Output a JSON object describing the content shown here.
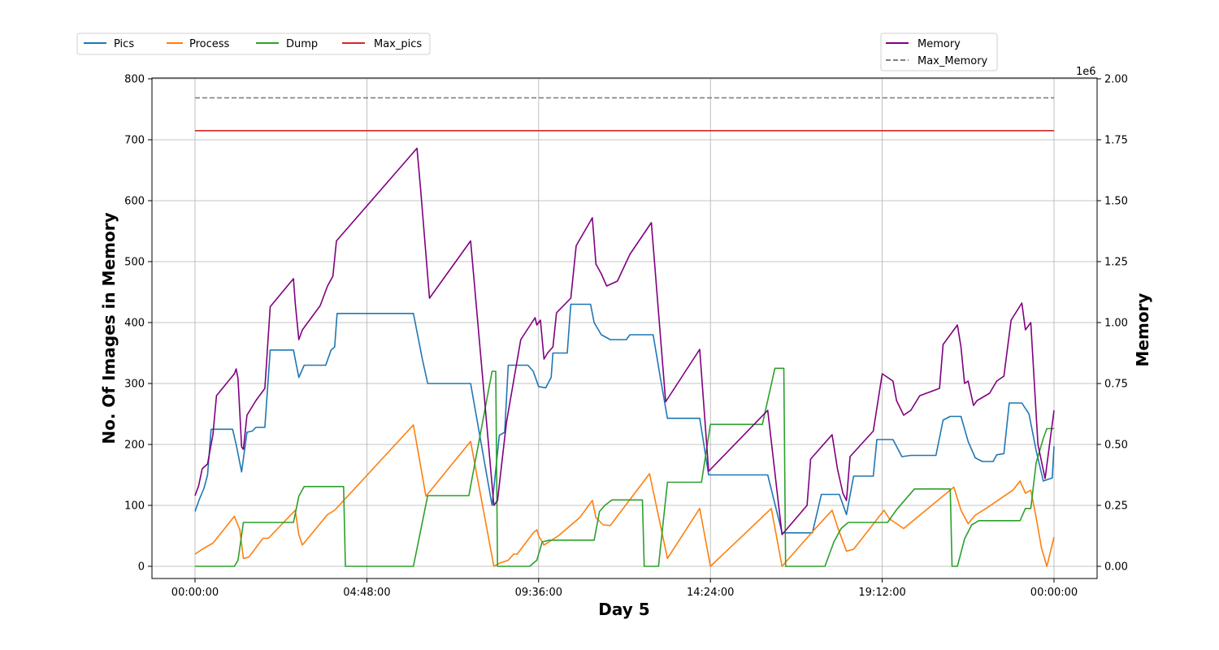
{
  "chart_data": {
    "type": "line",
    "xlabel": "Day 5",
    "ylabel_left": "No. Of Images in Memory",
    "ylabel_right": "Memory",
    "right_axis_multiplier": "1e6",
    "x_unit": "hours",
    "x_range": [
      0,
      24
    ],
    "x_ticks": [
      {
        "value": 0,
        "label": "00:00:00"
      },
      {
        "value": 4.8,
        "label": "04:48:00"
      },
      {
        "value": 9.6,
        "label": "09:36:00"
      },
      {
        "value": 14.4,
        "label": "14:24:00"
      },
      {
        "value": 19.2,
        "label": "19:12:00"
      },
      {
        "value": 24,
        "label": "00:00:00"
      }
    ],
    "ylim_left": [
      -20,
      800
    ],
    "yticks_left": [
      0,
      100,
      200,
      300,
      400,
      500,
      600,
      700,
      800
    ],
    "ylim_right": [
      -50000,
      2000000
    ],
    "yticks_right": [
      {
        "value": 0,
        "label": "0.00"
      },
      {
        "value": 250000,
        "label": "0.25"
      },
      {
        "value": 500000,
        "label": "0.50"
      },
      {
        "value": 750000,
        "label": "0.75"
      },
      {
        "value": 1000000,
        "label": "1.00"
      },
      {
        "value": 1250000,
        "label": "1.25"
      },
      {
        "value": 1500000,
        "label": "1.50"
      },
      {
        "value": 1750000,
        "label": "1.75"
      },
      {
        "value": 2000000,
        "label": "2.00"
      }
    ],
    "grid": true,
    "legend_left": {
      "placement": "top-left (above plot)",
      "entries": [
        "Pics",
        "Process",
        "Dump",
        "Max_pics"
      ]
    },
    "legend_right": {
      "placement": "top-right (above plot)",
      "entries": [
        "Memory",
        "Max_Memory"
      ]
    },
    "series": [
      {
        "name": "Pics",
        "axis": "left",
        "color": "#1f77b4",
        "style": "solid",
        "points": [
          [
            0,
            90
          ],
          [
            0.12,
            110
          ],
          [
            0.25,
            128
          ],
          [
            0.35,
            150
          ],
          [
            0.45,
            225
          ],
          [
            1.05,
            225
          ],
          [
            1.15,
            200
          ],
          [
            1.3,
            155
          ],
          [
            1.45,
            220
          ],
          [
            1.6,
            222
          ],
          [
            1.7,
            228
          ],
          [
            1.95,
            228
          ],
          [
            2.1,
            355
          ],
          [
            2.75,
            355
          ],
          [
            2.9,
            310
          ],
          [
            3.05,
            330
          ],
          [
            3.65,
            330
          ],
          [
            3.8,
            355
          ],
          [
            3.9,
            360
          ],
          [
            3.97,
            415
          ],
          [
            6.1,
            415
          ],
          [
            6.35,
            340
          ],
          [
            6.5,
            300
          ],
          [
            7.7,
            300
          ],
          [
            8.3,
            100
          ],
          [
            8.5,
            215
          ],
          [
            8.65,
            220
          ],
          [
            8.75,
            330
          ],
          [
            9.3,
            330
          ],
          [
            9.45,
            320
          ],
          [
            9.6,
            295
          ],
          [
            9.8,
            293
          ],
          [
            9.95,
            310
          ],
          [
            10,
            350
          ],
          [
            10.4,
            350
          ],
          [
            10.5,
            430
          ],
          [
            11.05,
            430
          ],
          [
            11.15,
            400
          ],
          [
            11.35,
            380
          ],
          [
            11.6,
            372
          ],
          [
            12.05,
            372
          ],
          [
            12.15,
            380
          ],
          [
            12.8,
            380
          ],
          [
            13.0,
            310
          ],
          [
            13.2,
            243
          ],
          [
            14.1,
            243
          ],
          [
            14.35,
            150
          ],
          [
            16.0,
            150
          ],
          [
            16.4,
            55
          ],
          [
            17.25,
            55
          ],
          [
            17.5,
            118
          ],
          [
            18.0,
            118
          ],
          [
            18.2,
            85
          ],
          [
            18.4,
            148
          ],
          [
            18.95,
            148
          ],
          [
            19.05,
            208
          ],
          [
            19.5,
            208
          ],
          [
            19.75,
            180
          ],
          [
            20.0,
            182
          ],
          [
            20.7,
            182
          ],
          [
            20.9,
            240
          ],
          [
            21.1,
            246
          ],
          [
            21.4,
            246
          ],
          [
            21.6,
            205
          ],
          [
            21.8,
            178
          ],
          [
            22.0,
            172
          ],
          [
            22.3,
            172
          ],
          [
            22.4,
            183
          ],
          [
            22.6,
            185
          ],
          [
            22.75,
            268
          ],
          [
            23.1,
            268
          ],
          [
            23.3,
            250
          ],
          [
            23.5,
            190
          ],
          [
            23.7,
            140
          ],
          [
            23.95,
            145
          ],
          [
            24,
            197
          ]
        ]
      },
      {
        "name": "Process",
        "axis": "left",
        "color": "#ff7f0e",
        "style": "solid",
        "points": [
          [
            0,
            20
          ],
          [
            0.2,
            28
          ],
          [
            0.5,
            38
          ],
          [
            1.1,
            82
          ],
          [
            1.25,
            60
          ],
          [
            1.35,
            13
          ],
          [
            1.5,
            15
          ],
          [
            1.9,
            46
          ],
          [
            2.05,
            46
          ],
          [
            2.8,
            92
          ],
          [
            2.9,
            52
          ],
          [
            3.0,
            35
          ],
          [
            3.7,
            85
          ],
          [
            3.9,
            92
          ],
          [
            6.1,
            232
          ],
          [
            6.45,
            115
          ],
          [
            7.7,
            205
          ],
          [
            8.35,
            0
          ],
          [
            8.5,
            5
          ],
          [
            8.75,
            10
          ],
          [
            8.9,
            20
          ],
          [
            9.0,
            20
          ],
          [
            9.45,
            55
          ],
          [
            9.55,
            60
          ],
          [
            9.6,
            50
          ],
          [
            9.75,
            35
          ],
          [
            10.15,
            50
          ],
          [
            10.75,
            80
          ],
          [
            11.1,
            108
          ],
          [
            11.2,
            80
          ],
          [
            11.4,
            68
          ],
          [
            11.6,
            67
          ],
          [
            12.7,
            152
          ],
          [
            13.2,
            13
          ],
          [
            14.1,
            95
          ],
          [
            14.4,
            0
          ],
          [
            16.1,
            95
          ],
          [
            16.4,
            0
          ],
          [
            17.3,
            60
          ],
          [
            17.8,
            92
          ],
          [
            17.95,
            65
          ],
          [
            18.2,
            25
          ],
          [
            18.4,
            28
          ],
          [
            19.25,
            92
          ],
          [
            19.4,
            78
          ],
          [
            19.6,
            70
          ],
          [
            19.8,
            62
          ],
          [
            21.2,
            130
          ],
          [
            21.4,
            92
          ],
          [
            21.6,
            70
          ],
          [
            21.8,
            84
          ],
          [
            22.1,
            95
          ],
          [
            22.6,
            115
          ],
          [
            22.85,
            125
          ],
          [
            23.05,
            140
          ],
          [
            23.2,
            120
          ],
          [
            23.35,
            125
          ],
          [
            23.5,
            80
          ],
          [
            23.65,
            30
          ],
          [
            23.8,
            0
          ],
          [
            24,
            48
          ]
        ]
      },
      {
        "name": "Dump",
        "axis": "left",
        "color": "#2ca02c",
        "style": "solid",
        "points": [
          [
            0,
            0
          ],
          [
            1.1,
            0
          ],
          [
            1.2,
            10
          ],
          [
            1.35,
            72
          ],
          [
            2.75,
            72
          ],
          [
            2.9,
            115
          ],
          [
            3.05,
            131
          ],
          [
            4.15,
            131
          ],
          [
            4.2,
            0
          ],
          [
            6.1,
            0
          ],
          [
            6.5,
            116
          ],
          [
            7.65,
            116
          ],
          [
            8.3,
            320
          ],
          [
            8.4,
            320
          ],
          [
            8.45,
            0
          ],
          [
            9.35,
            0
          ],
          [
            9.55,
            10
          ],
          [
            9.7,
            40
          ],
          [
            9.9,
            43
          ],
          [
            11.15,
            43
          ],
          [
            11.3,
            90
          ],
          [
            11.45,
            100
          ],
          [
            11.65,
            109
          ],
          [
            12.5,
            109
          ],
          [
            12.55,
            0
          ],
          [
            12.95,
            0
          ],
          [
            13.2,
            138
          ],
          [
            14.15,
            138
          ],
          [
            14.4,
            233
          ],
          [
            15.85,
            233
          ],
          [
            16.2,
            325
          ],
          [
            16.45,
            325
          ],
          [
            16.5,
            0
          ],
          [
            17.6,
            0
          ],
          [
            17.85,
            40
          ],
          [
            18.05,
            62
          ],
          [
            18.25,
            72
          ],
          [
            19.35,
            72
          ],
          [
            19.6,
            93
          ],
          [
            20.1,
            127
          ],
          [
            21.1,
            127
          ],
          [
            21.15,
            0
          ],
          [
            21.3,
            0
          ],
          [
            21.5,
            45
          ],
          [
            21.7,
            68
          ],
          [
            21.9,
            75
          ],
          [
            23.05,
            75
          ],
          [
            23.2,
            95
          ],
          [
            23.35,
            95
          ],
          [
            23.5,
            170
          ],
          [
            23.7,
            210
          ],
          [
            23.8,
            226
          ],
          [
            24,
            226
          ]
        ]
      },
      {
        "name": "Max_pics",
        "axis": "left",
        "color": "#d62728",
        "style": "solid",
        "points": [
          [
            0,
            715
          ],
          [
            24,
            715
          ]
        ]
      },
      {
        "name": "Memory",
        "axis": "right",
        "color": "#800080",
        "style": "solid",
        "points": [
          [
            0,
            290000
          ],
          [
            0.1,
            330000
          ],
          [
            0.2,
            400000
          ],
          [
            0.35,
            420000
          ],
          [
            0.5,
            540000
          ],
          [
            0.6,
            700000
          ],
          [
            1.1,
            790000
          ],
          [
            1.15,
            810000
          ],
          [
            1.2,
            770000
          ],
          [
            1.3,
            490000
          ],
          [
            1.35,
            480000
          ],
          [
            1.45,
            620000
          ],
          [
            1.7,
            680000
          ],
          [
            1.95,
            730000
          ],
          [
            2.1,
            1065000
          ],
          [
            2.75,
            1180000
          ],
          [
            2.8,
            1080000
          ],
          [
            2.9,
            930000
          ],
          [
            3.0,
            970000
          ],
          [
            3.5,
            1070000
          ],
          [
            3.7,
            1150000
          ],
          [
            3.85,
            1190000
          ],
          [
            3.95,
            1335000
          ],
          [
            6.2,
            1715000
          ],
          [
            6.3,
            1550000
          ],
          [
            6.55,
            1100000
          ],
          [
            7.7,
            1335000
          ],
          [
            8.35,
            250000
          ],
          [
            8.45,
            270000
          ],
          [
            8.7,
            590000
          ],
          [
            9.1,
            930000
          ],
          [
            9.5,
            1020000
          ],
          [
            9.55,
            990000
          ],
          [
            9.65,
            1010000
          ],
          [
            9.75,
            850000
          ],
          [
            9.85,
            875000
          ],
          [
            10.0,
            900000
          ],
          [
            10.1,
            1040000
          ],
          [
            10.5,
            1100000
          ],
          [
            10.65,
            1315000
          ],
          [
            11.1,
            1430000
          ],
          [
            11.2,
            1240000
          ],
          [
            11.35,
            1200000
          ],
          [
            11.5,
            1150000
          ],
          [
            11.8,
            1170000
          ],
          [
            12.15,
            1280000
          ],
          [
            12.75,
            1410000
          ],
          [
            13.15,
            675000
          ],
          [
            14.1,
            890000
          ],
          [
            14.35,
            390000
          ],
          [
            16.0,
            640000
          ],
          [
            16.4,
            130000
          ],
          [
            17.1,
            250000
          ],
          [
            17.2,
            440000
          ],
          [
            17.8,
            540000
          ],
          [
            17.95,
            400000
          ],
          [
            18.1,
            300000
          ],
          [
            18.2,
            270000
          ],
          [
            18.3,
            450000
          ],
          [
            18.95,
            555000
          ],
          [
            19.2,
            790000
          ],
          [
            19.5,
            760000
          ],
          [
            19.6,
            680000
          ],
          [
            19.8,
            620000
          ],
          [
            20.0,
            640000
          ],
          [
            20.25,
            700000
          ],
          [
            20.8,
            730000
          ],
          [
            20.9,
            910000
          ],
          [
            21.3,
            990000
          ],
          [
            21.4,
            900000
          ],
          [
            21.5,
            750000
          ],
          [
            21.6,
            760000
          ],
          [
            21.75,
            660000
          ],
          [
            21.85,
            680000
          ],
          [
            22.2,
            710000
          ],
          [
            22.4,
            760000
          ],
          [
            22.6,
            780000
          ],
          [
            22.8,
            1010000
          ],
          [
            23.1,
            1080000
          ],
          [
            23.2,
            970000
          ],
          [
            23.35,
            1000000
          ],
          [
            23.55,
            500000
          ],
          [
            23.75,
            360000
          ],
          [
            24,
            640000
          ]
        ]
      },
      {
        "name": "Max_Memory",
        "axis": "right",
        "color": "#808080",
        "style": "dashed",
        "points": [
          [
            0,
            1922000
          ],
          [
            24,
            1922000
          ]
        ]
      }
    ]
  }
}
